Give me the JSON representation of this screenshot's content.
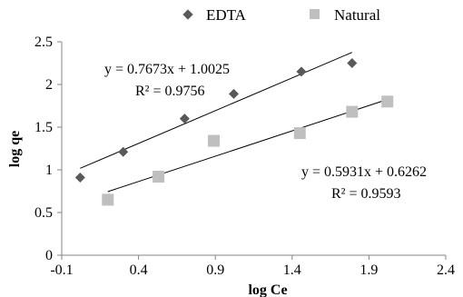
{
  "chart_data": {
    "type": "scatter",
    "xlabel": "log Ce",
    "ylabel": "log qe",
    "xlim": [
      -0.1,
      2.4
    ],
    "ylim": [
      0,
      2.5
    ],
    "x_ticks": [
      "-0.1",
      "0.4",
      "0.9",
      "1.4",
      "1.9",
      "2.4"
    ],
    "y_ticks": [
      "0",
      "0.5",
      "1",
      "1.5",
      "2",
      "2.5"
    ],
    "grid": false,
    "legend_position": "top",
    "series": [
      {
        "name": "EDTA",
        "marker": "diamond",
        "color": "#595959",
        "points": [
          {
            "x": 0.02,
            "y": 0.91
          },
          {
            "x": 0.3,
            "y": 1.21
          },
          {
            "x": 0.7,
            "y": 1.6
          },
          {
            "x": 1.02,
            "y": 1.89
          },
          {
            "x": 1.46,
            "y": 2.15
          },
          {
            "x": 1.79,
            "y": 2.25
          }
        ],
        "trendline": {
          "slope": 0.7673,
          "intercept": 1.0025,
          "x_start": 0.02,
          "x_end": 1.79
        },
        "equation": "y = 0.7673x + 1.0025",
        "r2": "R² = 0.9756"
      },
      {
        "name": "Natural",
        "marker": "square",
        "color": "#bfbfbf",
        "points": [
          {
            "x": 0.2,
            "y": 0.65
          },
          {
            "x": 0.53,
            "y": 0.92
          },
          {
            "x": 0.89,
            "y": 1.34
          },
          {
            "x": 1.45,
            "y": 1.43
          },
          {
            "x": 1.79,
            "y": 1.68
          },
          {
            "x": 2.02,
            "y": 1.8
          }
        ],
        "trendline": {
          "slope": 0.5931,
          "intercept": 0.6262,
          "x_start": 0.2,
          "x_end": 2.02
        },
        "equation": "y = 0.5931x + 0.6262",
        "r2": "R² = 0.9593"
      }
    ]
  }
}
